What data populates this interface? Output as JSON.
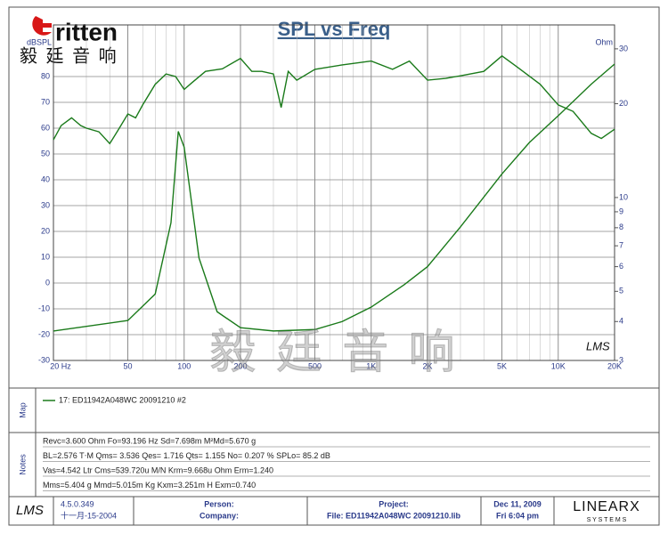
{
  "header": {
    "logo": "ritten",
    "logo_cn": "毅 廷 音 响",
    "watermark": "毅 廷 音 响"
  },
  "chart_data": {
    "type": "line",
    "title": "SPL vs Freq",
    "ylabel": "dBSPL",
    "y2label": "Ohm",
    "brand_mark": "LMS",
    "xscale": "log",
    "y2scale": "log",
    "grid": true,
    "xlim": [
      20,
      20000
    ],
    "ylim": [
      -30,
      100
    ],
    "y2lim": [
      3,
      35.8
    ],
    "xticks": [
      {
        "value": 20,
        "label": "20 Hz"
      },
      50,
      100,
      200,
      500,
      {
        "value": 1000,
        "label": "1K"
      },
      {
        "value": 2000,
        "label": "2K"
      },
      {
        "value": 5000,
        "label": "5K"
      },
      {
        "value": 10000,
        "label": "10K"
      },
      {
        "value": 20000,
        "label": "20K"
      }
    ],
    "yticks": [
      -30,
      -20,
      -10,
      0,
      10,
      20,
      30,
      40,
      50,
      60,
      70,
      80
    ],
    "y2ticks": [
      3,
      4,
      5,
      6,
      7,
      8,
      9,
      10,
      20,
      30
    ],
    "series": [
      {
        "color": "#1a7a1a",
        "x": [
          20,
          22,
          25,
          28,
          30,
          35,
          40,
          45,
          50,
          55,
          60,
          70,
          80,
          90,
          100,
          110,
          130,
          160,
          200,
          230,
          260,
          300,
          330,
          360,
          400,
          500,
          700,
          1000,
          1300,
          1600,
          2000,
          2500,
          3000,
          4000,
          5000,
          6000,
          8000,
          10000,
          12000,
          15000,
          17000,
          20000
        ],
        "values": [
          55.5,
          61,
          64,
          61,
          60,
          58.6,
          54,
          60,
          65.5,
          64,
          69,
          77,
          81,
          80,
          75,
          77.6,
          82,
          83,
          87,
          82,
          82,
          81,
          68,
          82,
          78.6,
          82.8,
          84.5,
          86,
          82.8,
          86,
          78.6,
          79.3,
          80.3,
          82,
          88,
          83.8,
          77,
          69,
          66.5,
          58,
          56,
          59.6
        ]
      },
      {
        "color": "#1a7a1a",
        "axis": "y2",
        "x": [
          20,
          50,
          70,
          85,
          93,
          100,
          120,
          150,
          200,
          300,
          500,
          700,
          1000,
          1500,
          2000,
          3000,
          5000,
          7000,
          10000,
          15000,
          20000
        ],
        "values": [
          3.73,
          4.03,
          4.9,
          8.3,
          16.3,
          14.5,
          6.4,
          4.3,
          3.82,
          3.73,
          3.77,
          4.0,
          4.45,
          5.25,
          6.0,
          8.05,
          11.9,
          15,
          18.3,
          23.1,
          26.8
        ]
      }
    ]
  },
  "map": {
    "label": "Map",
    "entry": "17: ED11942A048WC  20091210  #2"
  },
  "notes": {
    "label": "Notes",
    "lines": [
      "Revc=3.600 Ohm  Fo=93.196 Hz  Sd=7.698m M²Md=5.670 g",
      "BL=2.576 T‧M  Qms= 3.536  Qes= 1.716  Qts= 1.155  No= 0.207 %  SPLo= 85.2 dB",
      "Vas=4.542 Ltr  Cms=539.720u M/N  Krm=9.668u Ohm  Erm=1.240",
      "Mms=5.404 g  Mmd=5.015m Kg  Kxm=3.251m H  Exm=0.740"
    ]
  },
  "footer": {
    "logo": "LMS",
    "version": "4.5.0.349",
    "date": "十一月-15-2004",
    "person": "Person:",
    "company": "Company:",
    "project": "Project:",
    "file": "File: ED11942A048WC  20091210.lib",
    "date2": "Dec 11, 2009",
    "time": "Fri  6:04 pm",
    "brand": "LINEARX",
    "brand_sub": "S Y S T E M S"
  }
}
